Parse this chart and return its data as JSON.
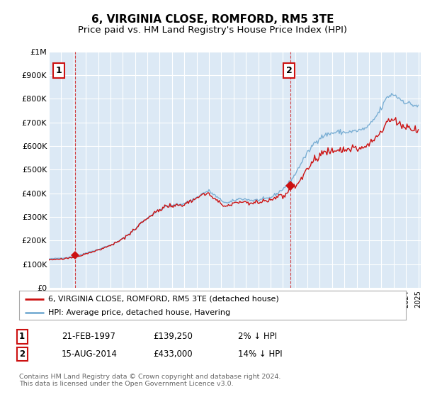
{
  "title": "6, VIRGINIA CLOSE, ROMFORD, RM5 3TE",
  "subtitle": "Price paid vs. HM Land Registry's House Price Index (HPI)",
  "title_fontsize": 11,
  "subtitle_fontsize": 9.5,
  "ylim": [
    0,
    1000000
  ],
  "yticks": [
    0,
    100000,
    200000,
    300000,
    400000,
    500000,
    600000,
    700000,
    800000,
    900000,
    1000000
  ],
  "ytick_labels": [
    "£0",
    "£100K",
    "£200K",
    "£300K",
    "£400K",
    "£500K",
    "£600K",
    "£700K",
    "£800K",
    "£900K",
    "£1M"
  ],
  "background_color": "#ffffff",
  "plot_bg_color": "#dce9f5",
  "grid_color": "#ffffff",
  "hpi_color": "#7bafd4",
  "price_color": "#cc1111",
  "sale1_year": 1997.12,
  "sale1_price": 139250,
  "sale2_year": 2014.62,
  "sale2_price": 433000,
  "legend_line1": "6, VIRGINIA CLOSE, ROMFORD, RM5 3TE (detached house)",
  "legend_line2": "HPI: Average price, detached house, Havering",
  "sale1_date": "21-FEB-1997",
  "sale1_price_str": "£139,250",
  "sale1_rel": "2% ↓ HPI",
  "sale2_date": "15-AUG-2014",
  "sale2_price_str": "£433,000",
  "sale2_rel": "14% ↓ HPI",
  "footer": "Contains HM Land Registry data © Crown copyright and database right 2024.\nThis data is licensed under the Open Government Licence v3.0."
}
